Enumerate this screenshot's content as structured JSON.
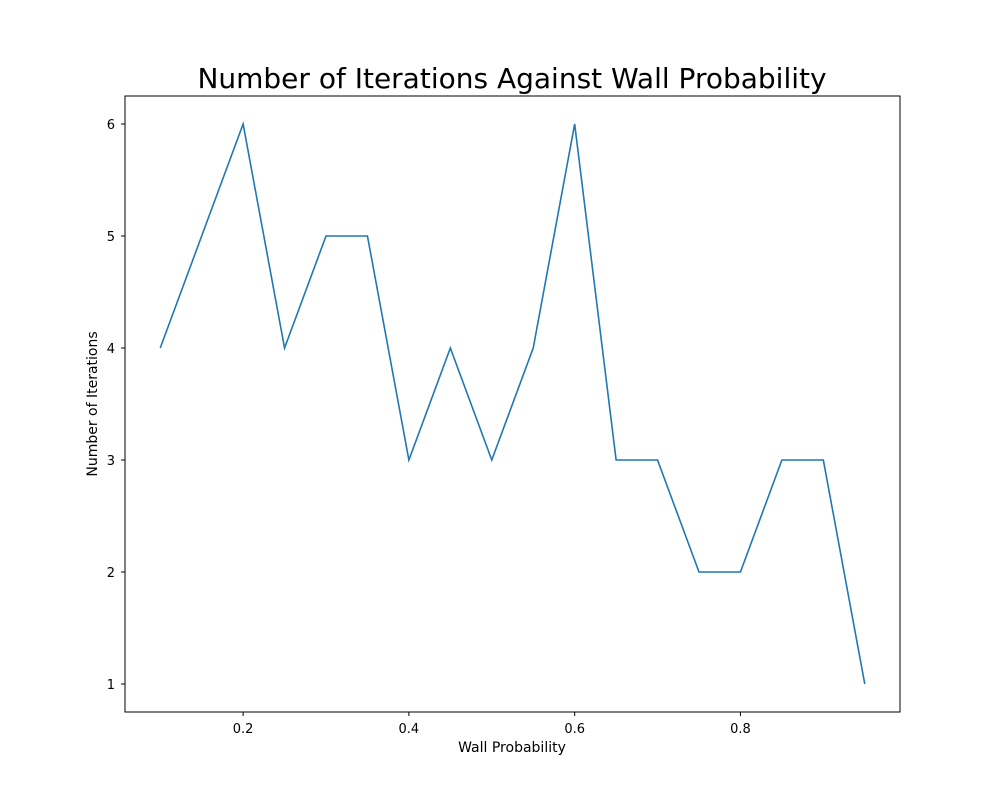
{
  "chart_data": {
    "type": "line",
    "title": "Number of Iterations Against Wall Probability",
    "xlabel": "Wall Probability",
    "ylabel": "Number of Iterations",
    "xlim": [
      0.0575,
      0.9925
    ],
    "ylim": [
      0.75,
      6.25
    ],
    "x_ticks": [
      0.2,
      0.4,
      0.6,
      0.8
    ],
    "x_tick_labels": [
      "0.2",
      "0.4",
      "0.6",
      "0.8"
    ],
    "y_ticks": [
      1,
      2,
      3,
      4,
      5,
      6
    ],
    "y_tick_labels": [
      "1",
      "2",
      "3",
      "4",
      "5",
      "6"
    ],
    "grid": false,
    "legend": "none",
    "series": [
      {
        "color": "#1f77b4",
        "x": [
          0.1,
          0.15,
          0.2,
          0.25,
          0.3,
          0.35,
          0.4,
          0.45,
          0.5,
          0.55,
          0.6,
          0.65,
          0.7,
          0.75,
          0.8,
          0.85,
          0.9,
          0.95
        ],
        "values": [
          4,
          5,
          6,
          4,
          5,
          5,
          3,
          4,
          3,
          4,
          6,
          3,
          3,
          2,
          2,
          3,
          3,
          1
        ]
      }
    ]
  }
}
